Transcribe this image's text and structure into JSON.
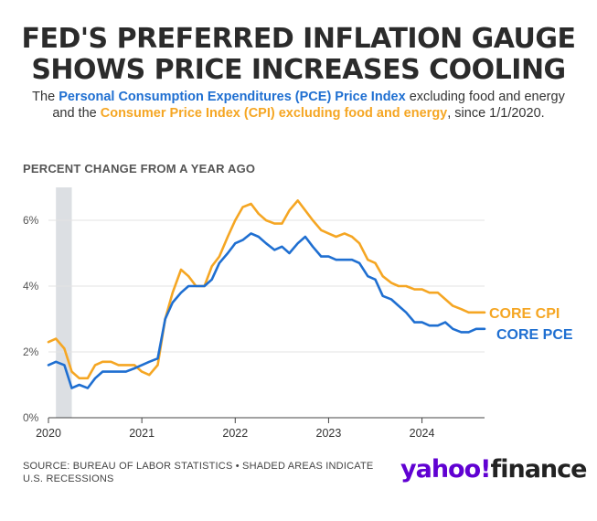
{
  "header": {
    "title_line1": "FED'S PREFERRED INFLATION GAUGE",
    "title_line2": "SHOWS PRICE INCREASES COOLING",
    "subtitle": {
      "part1": "The ",
      "pce_name": "Personal Consumption Expenditures (PCE) Price Index",
      "part2": " excluding food and energy and the ",
      "cpi_name": "Consumer Price Index (CPI) excluding food and energy",
      "part3": ", since 1/1/2020."
    }
  },
  "axis_title": "PERCENT CHANGE FROM A YEAR AGO",
  "source": "SOURCE: BUREAU OF LABOR STATISTICS • SHADED AREAS INDICATE U.S. RECESSIONS",
  "logo": {
    "yahoo": "yahoo",
    "slash": "!",
    "finance": "finance"
  },
  "colors": {
    "cpi": "#f5a623",
    "pce": "#1f6fd1",
    "recession": "#dcdfe3",
    "grid": "#e3e3e3"
  },
  "chart_data": {
    "type": "line",
    "title": "",
    "xlabel": "",
    "ylabel": "PERCENT CHANGE FROM A YEAR AGO",
    "ylim": [
      0,
      7
    ],
    "yticks": [
      "0%",
      "2%",
      "4%",
      "6%"
    ],
    "ytick_values": [
      0,
      2,
      4,
      6
    ],
    "xticks": [
      "2020",
      "2021",
      "2022",
      "2023",
      "2024"
    ],
    "xlim": [
      2020.0,
      2024.67
    ],
    "grid": true,
    "recession": {
      "start": 2020.08,
      "end": 2020.25
    },
    "x": [
      2020.0,
      2020.08,
      2020.17,
      2020.25,
      2020.33,
      2020.42,
      2020.5,
      2020.58,
      2020.67,
      2020.75,
      2020.83,
      2020.92,
      2021.0,
      2021.08,
      2021.17,
      2021.25,
      2021.33,
      2021.42,
      2021.5,
      2021.58,
      2021.67,
      2021.75,
      2021.83,
      2021.92,
      2022.0,
      2022.08,
      2022.17,
      2022.25,
      2022.33,
      2022.42,
      2022.5,
      2022.58,
      2022.67,
      2022.75,
      2022.83,
      2022.92,
      2023.0,
      2023.08,
      2023.17,
      2023.25,
      2023.33,
      2023.42,
      2023.5,
      2023.58,
      2023.67,
      2023.75,
      2023.83,
      2023.92,
      2024.0,
      2024.08,
      2024.17,
      2024.25,
      2024.33,
      2024.42,
      2024.5,
      2024.58,
      2024.67
    ],
    "series": [
      {
        "name": "CORE CPI",
        "color": "#f5a623",
        "values": [
          2.3,
          2.4,
          2.1,
          1.4,
          1.2,
          1.2,
          1.6,
          1.7,
          1.7,
          1.6,
          1.6,
          1.6,
          1.4,
          1.3,
          1.6,
          3.0,
          3.8,
          4.5,
          4.3,
          4.0,
          4.0,
          4.6,
          4.9,
          5.5,
          6.0,
          6.4,
          6.5,
          6.2,
          6.0,
          5.9,
          5.9,
          6.3,
          6.6,
          6.3,
          6.0,
          5.7,
          5.6,
          5.5,
          5.6,
          5.5,
          5.3,
          4.8,
          4.7,
          4.3,
          4.1,
          4.0,
          4.0,
          3.9,
          3.9,
          3.8,
          3.8,
          3.6,
          3.4,
          3.3,
          3.2,
          3.2,
          3.2
        ]
      },
      {
        "name": "CORE PCE",
        "color": "#1f6fd1",
        "values": [
          1.6,
          1.7,
          1.6,
          0.9,
          1.0,
          0.9,
          1.2,
          1.4,
          1.4,
          1.4,
          1.4,
          1.5,
          1.6,
          1.7,
          1.8,
          3.0,
          3.5,
          3.8,
          4.0,
          4.0,
          4.0,
          4.2,
          4.7,
          5.0,
          5.3,
          5.4,
          5.6,
          5.5,
          5.3,
          5.1,
          5.2,
          5.0,
          5.3,
          5.5,
          5.2,
          4.9,
          4.9,
          4.8,
          4.8,
          4.8,
          4.7,
          4.3,
          4.2,
          3.7,
          3.6,
          3.4,
          3.2,
          2.9,
          2.9,
          2.8,
          2.8,
          2.9,
          2.7,
          2.6,
          2.6,
          2.7,
          2.7
        ]
      }
    ]
  }
}
